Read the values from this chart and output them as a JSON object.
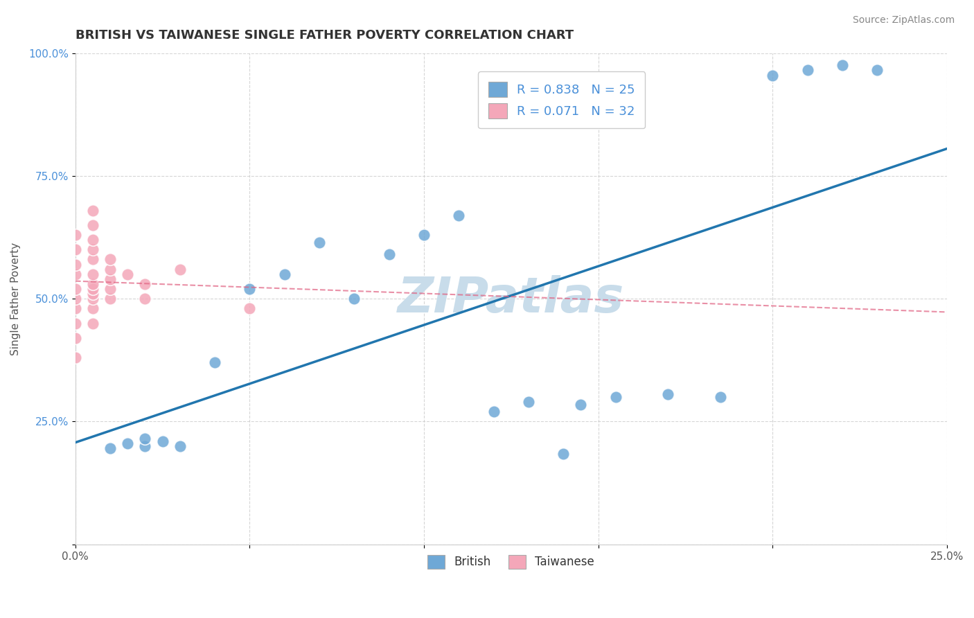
{
  "title": "BRITISH VS TAIWANESE SINGLE FATHER POVERTY CORRELATION CHART",
  "source": "Source: ZipAtlas.com",
  "ylabel": "Single Father Poverty",
  "xlabel": "",
  "xlim": [
    0,
    0.25
  ],
  "ylim": [
    0,
    1.0
  ],
  "xtick_labels": [
    "0.0%",
    "",
    "",
    "",
    "",
    "25.0%"
  ],
  "ytick_labels": [
    "",
    "25.0%",
    "50.0%",
    "75.0%",
    "100.0%"
  ],
  "british_R": 0.838,
  "british_N": 25,
  "taiwanese_R": 0.071,
  "taiwanese_N": 32,
  "british_color": "#6fa8d6",
  "taiwanese_color": "#f4a7b9",
  "british_line_color": "#2176ae",
  "taiwanese_line_color": "#e06080",
  "watermark": "ZIPatlas",
  "watermark_color": "#c8dcea",
  "british_x": [
    0.01,
    0.015,
    0.02,
    0.02,
    0.025,
    0.03,
    0.04,
    0.05,
    0.06,
    0.07,
    0.08,
    0.09,
    0.1,
    0.11,
    0.12,
    0.13,
    0.14,
    0.145,
    0.155,
    0.17,
    0.185,
    0.2,
    0.21,
    0.22,
    0.23
  ],
  "british_y": [
    0.195,
    0.205,
    0.2,
    0.215,
    0.21,
    0.2,
    0.37,
    0.52,
    0.55,
    0.615,
    0.5,
    0.59,
    0.63,
    0.67,
    0.27,
    0.29,
    0.185,
    0.285,
    0.3,
    0.305,
    0.3,
    0.955,
    0.965,
    0.975,
    0.965
  ],
  "taiwanese_x": [
    0.0,
    0.0,
    0.0,
    0.0,
    0.0,
    0.0,
    0.0,
    0.0,
    0.0,
    0.0,
    0.005,
    0.005,
    0.005,
    0.005,
    0.005,
    0.005,
    0.005,
    0.005,
    0.005,
    0.005,
    0.005,
    0.005,
    0.01,
    0.01,
    0.01,
    0.01,
    0.01,
    0.015,
    0.02,
    0.02,
    0.03,
    0.05
  ],
  "taiwanese_y": [
    0.38,
    0.42,
    0.45,
    0.48,
    0.5,
    0.52,
    0.55,
    0.57,
    0.6,
    0.63,
    0.45,
    0.48,
    0.5,
    0.51,
    0.52,
    0.53,
    0.55,
    0.58,
    0.6,
    0.62,
    0.65,
    0.68,
    0.5,
    0.52,
    0.54,
    0.56,
    0.58,
    0.55,
    0.5,
    0.53,
    0.56,
    0.48
  ]
}
